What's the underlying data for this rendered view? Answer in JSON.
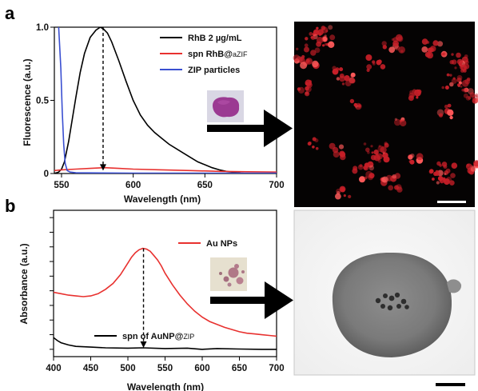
{
  "panels": {
    "a": {
      "label": "a"
    },
    "b": {
      "label": "b"
    }
  },
  "chart_data": [
    {
      "type": "line",
      "panel": "a",
      "xlabel": "Wavelength (nm)",
      "ylabel": "Fluorescence (a.u.)",
      "xlim": [
        545,
        700
      ],
      "ylim": [
        0,
        1.0
      ],
      "xticks": [
        550,
        600,
        650,
        700
      ],
      "yticks": [
        {
          "value": 0,
          "label": "0"
        },
        {
          "value": 0.5,
          "label": "0.5"
        },
        {
          "value": 1.0,
          "label": "1.0"
        }
      ],
      "legend_position": "top-right",
      "legend": [
        {
          "text": "RhB 2 µg/mL",
          "color": "#000000"
        },
        {
          "text_main": "spn RhB@",
          "text_sub": "aZIF",
          "color": "#e8312f"
        },
        {
          "text": "ZIP particles",
          "color": "#3a4fd1"
        }
      ],
      "series": [
        {
          "color": "#000000",
          "x": [
            545,
            548,
            550,
            552,
            555,
            558,
            560,
            563,
            566,
            570,
            574,
            577,
            579,
            582,
            585,
            590,
            595,
            600,
            605,
            610,
            615,
            620,
            625,
            630,
            635,
            640,
            645,
            650,
            655,
            660,
            665,
            670,
            675,
            680,
            690,
            700
          ],
          "y": [
            0.0,
            0.01,
            0.03,
            0.08,
            0.22,
            0.4,
            0.52,
            0.69,
            0.82,
            0.93,
            0.98,
            1.0,
            0.99,
            0.96,
            0.9,
            0.77,
            0.63,
            0.5,
            0.4,
            0.33,
            0.28,
            0.24,
            0.2,
            0.17,
            0.14,
            0.11,
            0.08,
            0.06,
            0.04,
            0.025,
            0.015,
            0.008,
            0.003,
            0.0,
            0.0,
            0.0
          ]
        },
        {
          "color": "#e8312f",
          "x": [
            545,
            550,
            560,
            570,
            580,
            590,
            600,
            620,
            640,
            660,
            680,
            700
          ],
          "y": [
            0.02,
            0.025,
            0.03,
            0.035,
            0.04,
            0.035,
            0.03,
            0.025,
            0.02,
            0.015,
            0.012,
            0.01
          ]
        },
        {
          "color": "#3a4fd1",
          "x": [
            548,
            549.5,
            550.5,
            551.5,
            552.5,
            554,
            556,
            560,
            600,
            650,
            700
          ],
          "y": [
            1.0,
            0.72,
            0.42,
            0.2,
            0.07,
            0.02,
            0.01,
            0.005,
            0.003,
            0.002,
            0.002
          ]
        }
      ],
      "annotation": {
        "type": "dashed-arrow",
        "x": 579,
        "from_y": 1.0,
        "to_y": 0.02
      }
    },
    {
      "type": "line",
      "panel": "b",
      "xlabel": "Wavelength (nm)",
      "ylabel": "Absorbance (a.u.)",
      "xlim": [
        400,
        700
      ],
      "ylim": [
        0,
        1.0
      ],
      "xticks": [
        400,
        450,
        500,
        550,
        600,
        650,
        700
      ],
      "yticks_unlabeled": [
        0.05,
        0.15,
        0.25,
        0.35,
        0.45,
        0.55,
        0.65,
        0.75,
        0.85,
        0.95
      ],
      "legend": [
        {
          "text": "Au NPs",
          "color": "#e8312f",
          "position": "top-right"
        },
        {
          "text_main": "spn of AuNP@",
          "text_sub": "ZIP",
          "color": "#000000",
          "position": "bottom"
        }
      ],
      "series": [
        {
          "color": "#e8312f",
          "x": [
            400,
            410,
            420,
            430,
            440,
            450,
            460,
            470,
            480,
            490,
            500,
            505,
            510,
            515,
            520,
            525,
            530,
            535,
            540,
            545,
            550,
            560,
            570,
            580,
            590,
            600,
            610,
            620,
            630,
            640,
            650,
            660,
            670,
            680,
            690,
            700
          ],
          "y": [
            0.44,
            0.43,
            0.42,
            0.415,
            0.41,
            0.415,
            0.43,
            0.46,
            0.5,
            0.56,
            0.64,
            0.68,
            0.71,
            0.73,
            0.74,
            0.735,
            0.72,
            0.69,
            0.66,
            0.62,
            0.57,
            0.49,
            0.42,
            0.36,
            0.31,
            0.27,
            0.24,
            0.22,
            0.2,
            0.185,
            0.17,
            0.16,
            0.155,
            0.15,
            0.145,
            0.14
          ]
        },
        {
          "color": "#000000",
          "x": [
            400,
            405,
            410,
            420,
            430,
            450,
            470,
            500,
            520,
            550,
            580,
            600,
            620,
            650,
            680,
            700
          ],
          "y": [
            0.13,
            0.11,
            0.095,
            0.08,
            0.07,
            0.065,
            0.06,
            0.058,
            0.06,
            0.055,
            0.058,
            0.05,
            0.055,
            0.052,
            0.05,
            0.05
          ]
        }
      ],
      "annotation": {
        "type": "dashed-arrow",
        "x": 521,
        "from_y": 0.74,
        "to_y": 0.06
      }
    }
  ]
}
